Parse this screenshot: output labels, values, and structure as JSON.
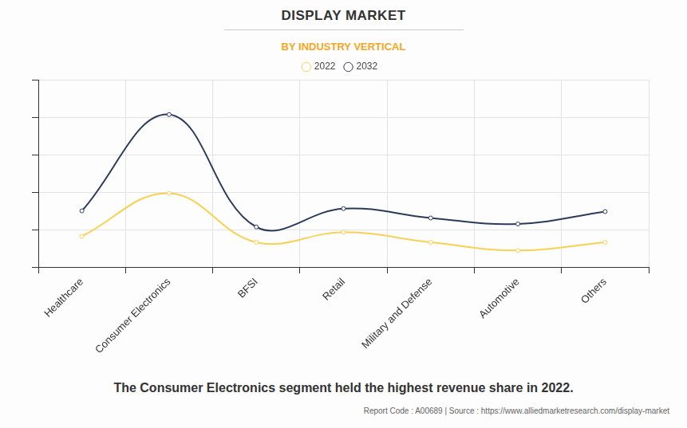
{
  "chart_data": {
    "type": "line",
    "title": "DISPLAY MARKET",
    "subtitle": "BY INDUSTRY VERTICAL",
    "categories": [
      "Healthcare",
      "Consumer Electronics",
      "BFSI",
      "Retail",
      "Military and Defense",
      "Automotive",
      "Others"
    ],
    "series": [
      {
        "name": "2022",
        "color": "#f7d154",
        "values": [
          8.2,
          19.7,
          6.6,
          9.3,
          6.6,
          4.4,
          6.6
        ]
      },
      {
        "name": "2032",
        "color": "#2c3a5c",
        "values": [
          15.0,
          40.7,
          10.7,
          15.6,
          13.1,
          11.5,
          14.8
        ]
      }
    ],
    "ylim": [
      0,
      50
    ],
    "yticks": [
      0,
      10,
      20,
      30,
      40,
      50
    ],
    "grid": true,
    "legend": "top",
    "tick_labels": "x",
    "marker": "circle",
    "caption": "The Consumer Electronics segment held the highest revenue share in 2022.",
    "footer": "Report Code : A00689  |  Source : https://www.alliedmarketresearch.com/display-market"
  }
}
